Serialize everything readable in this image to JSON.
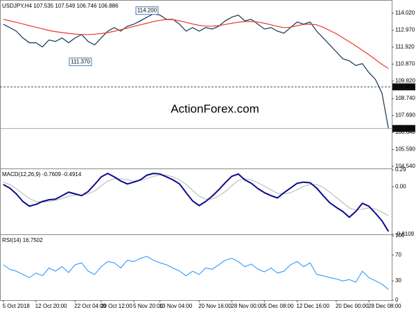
{
  "chart_data": [
    {
      "type": "line",
      "title": "USDJPY,H4 107.535 107.549 106.746 106.886",
      "watermark": "ActionForex.com",
      "ylim": [
        104.41,
        114.75
      ],
      "yticks": [
        {
          "value": 114.02,
          "label": "114.020"
        },
        {
          "value": 112.97,
          "label": "112.970"
        },
        {
          "value": 111.92,
          "label": "111.920"
        },
        {
          "value": 110.87,
          "label": "110.870"
        },
        {
          "value": 109.82,
          "label": "109.820"
        },
        {
          "value": 108.74,
          "label": "108.740"
        },
        {
          "value": 107.69,
          "label": "107.690"
        },
        {
          "value": 106.64,
          "label": "106.640"
        },
        {
          "value": 105.59,
          "label": "105.590"
        },
        {
          "value": 104.54,
          "label": "104.540"
        }
      ],
      "hlines": [
        {
          "value": 109.46,
          "label": "109.460",
          "style": "dashed"
        },
        {
          "value": 106.886,
          "label": "106.886",
          "style": "solid"
        }
      ],
      "annotations": [
        {
          "value": 114.2,
          "label": "114.200"
        },
        {
          "value": 111.37,
          "label": "111.370"
        }
      ],
      "series": [
        {
          "color": "#23405e",
          "width": 1.3,
          "values": [
            113.34,
            113.13,
            112.91,
            112.49,
            112.19,
            112.19,
            111.93,
            112.36,
            112.27,
            112.49,
            112.19,
            112.49,
            112.7,
            112.27,
            112.06,
            112.49,
            112.91,
            113.13,
            112.91,
            113.21,
            113.34,
            113.55,
            113.77,
            113.98,
            113.9,
            113.64,
            113.64,
            113.34,
            112.91,
            113.13,
            112.91,
            113.13,
            113.04,
            113.21,
            113.55,
            113.77,
            113.9,
            113.55,
            113.64,
            113.34,
            113.04,
            113.13,
            112.91,
            112.78,
            113.13,
            113.47,
            113.34,
            113.47,
            112.91,
            112.49,
            112.06,
            111.63,
            111.2,
            111.07,
            110.78,
            110.9,
            110.35,
            109.92,
            109.07,
            106.886
          ]
        },
        {
          "color": "#e8392a",
          "width": 1.2,
          "values": [
            113.64,
            113.55,
            113.45,
            113.35,
            113.25,
            113.15,
            113.05,
            112.95,
            112.88,
            112.82,
            112.77,
            112.73,
            112.7,
            112.7,
            112.72,
            112.76,
            112.82,
            112.9,
            113.0,
            113.1,
            113.2,
            113.3,
            113.4,
            113.5,
            113.58,
            113.63,
            113.62,
            113.55,
            113.45,
            113.35,
            113.27,
            113.22,
            113.22,
            113.25,
            113.32,
            113.4,
            113.46,
            113.5,
            113.5,
            113.47,
            113.4,
            113.3,
            113.2,
            113.13,
            113.15,
            113.25,
            113.32,
            113.34,
            113.3,
            113.15,
            112.95,
            112.75,
            112.5,
            112.25,
            112.0,
            111.72,
            111.45,
            111.15,
            110.85,
            110.6
          ]
        }
      ]
    },
    {
      "type": "line",
      "title": "MACD(12,26,9) -0.7609 -0.4914",
      "ylim": [
        -0.8109,
        0.29
      ],
      "yticks": [
        0.29,
        {
          "value": 0,
          "label": "0.00"
        },
        -0.8109
      ],
      "series": [
        {
          "color": "#b4b4b4",
          "width": 1,
          "values": [
            0.08,
            0.04,
            -0.03,
            -0.12,
            -0.2,
            -0.25,
            -0.26,
            -0.25,
            -0.23,
            -0.2,
            -0.16,
            -0.14,
            -0.14,
            -0.12,
            -0.07,
            0.02,
            0.1,
            0.14,
            0.14,
            0.12,
            0.1,
            0.11,
            0.14,
            0.18,
            0.2,
            0.2,
            0.17,
            0.12,
            0.04,
            -0.06,
            -0.16,
            -0.21,
            -0.21,
            -0.16,
            -0.08,
            0.02,
            0.11,
            0.14,
            0.12,
            0.07,
            0.01,
            -0.05,
            -0.11,
            -0.12,
            -0.1,
            -0.05,
            0.01,
            0.04,
            0.04,
            -0.01,
            -0.09,
            -0.18,
            -0.27,
            -0.36,
            -0.4,
            -0.38,
            -0.36,
            -0.38,
            -0.43,
            -0.4914
          ]
        },
        {
          "color": "#0a0a8c",
          "width": 2,
          "values": [
            0.04,
            -0.02,
            -0.12,
            -0.25,
            -0.33,
            -0.3,
            -0.25,
            -0.22,
            -0.21,
            -0.15,
            -0.09,
            -0.12,
            -0.15,
            -0.08,
            0.04,
            0.17,
            0.23,
            0.17,
            0.1,
            0.05,
            0.08,
            0.12,
            0.2,
            0.23,
            0.22,
            0.17,
            0.12,
            0.05,
            -0.1,
            -0.24,
            -0.32,
            -0.25,
            -0.16,
            -0.05,
            0.07,
            0.18,
            0.22,
            0.12,
            0.06,
            -0.03,
            -0.1,
            -0.15,
            -0.19,
            -0.1,
            -0.02,
            0.06,
            0.08,
            0.07,
            -0.02,
            -0.15,
            -0.27,
            -0.35,
            -0.42,
            -0.52,
            -0.42,
            -0.28,
            -0.33,
            -0.45,
            -0.58,
            -0.7609
          ]
        }
      ]
    },
    {
      "type": "line",
      "title": "RSI(14) 16.7502",
      "ylim": [
        0,
        100
      ],
      "yticks": [
        100,
        70,
        30,
        0
      ],
      "categories": [
        "5 Oct 2018",
        null,
        null,
        null,
        null,
        "12 Oct 20:00",
        null,
        null,
        null,
        null,
        null,
        "22 Oct 04:00",
        null,
        null,
        null,
        "29 Oct 12:00",
        null,
        null,
        null,
        null,
        "5 Nov 20:00",
        null,
        null,
        null,
        "13 Nov 04:00",
        null,
        null,
        null,
        null,
        null,
        "20 Nov 16:00",
        null,
        null,
        null,
        null,
        "28 Nov 00:00",
        null,
        null,
        null,
        null,
        "5 Dec 08:00",
        null,
        null,
        null,
        null,
        "12 Dec 16:00",
        null,
        null,
        null,
        null,
        null,
        "20 Dec 00:00",
        null,
        null,
        null,
        null,
        "28 Dec 08:00",
        null,
        null,
        null
      ],
      "series": [
        {
          "color": "#1e90ff",
          "width": 1,
          "values": [
            55,
            48,
            45,
            40,
            35,
            42,
            38,
            50,
            45,
            52,
            43,
            55,
            58,
            45,
            40,
            52,
            60,
            58,
            50,
            62,
            60,
            65,
            68,
            62,
            58,
            55,
            50,
            45,
            38,
            45,
            40,
            50,
            48,
            55,
            62,
            65,
            60,
            52,
            56,
            48,
            44,
            50,
            42,
            45,
            55,
            60,
            52,
            58,
            40,
            38,
            35,
            33,
            30,
            32,
            28,
            45,
            35,
            30,
            25,
            16.7502
          ]
        }
      ]
    }
  ]
}
